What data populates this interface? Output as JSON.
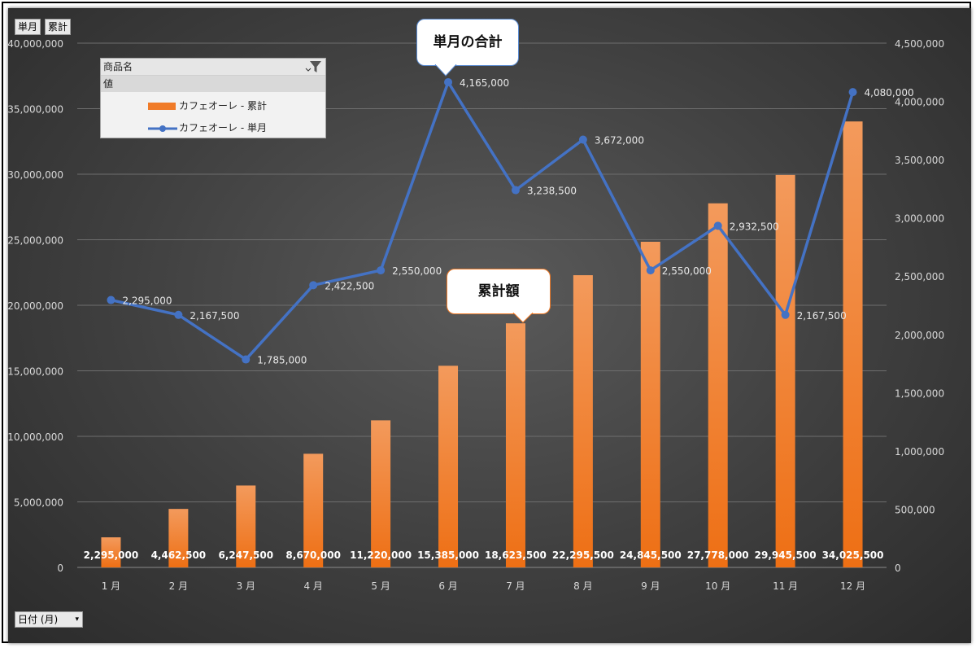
{
  "field_buttons": {
    "single": "単月",
    "cumulative": "累計",
    "date": "日付 (月)"
  },
  "legend": {
    "header": "商品名",
    "subheader": "値",
    "items": [
      {
        "label": "カフェオーレ - 累計",
        "color": "#f07b28"
      },
      {
        "label": "カフェオーレ - 単月",
        "color": "#4472c4"
      }
    ]
  },
  "callouts": {
    "single_total": "単月の合計",
    "cumulative_total": "累計額"
  },
  "chart_data": {
    "type": "bar",
    "categories": [
      "1 月",
      "2 月",
      "3 月",
      "4 月",
      "5 月",
      "6 月",
      "7 月",
      "8 月",
      "9 月",
      "10 月",
      "11 月",
      "12 月"
    ],
    "series": [
      {
        "name": "カフェオーレ - 累計",
        "type": "bar",
        "axis": "left",
        "color": "#f07b28",
        "values": [
          2295000,
          4462500,
          6247500,
          8670000,
          11220000,
          15385000,
          18623500,
          22295500,
          24845500,
          27778000,
          29945500,
          34025500
        ],
        "labels": [
          "2,295,000",
          "4,462,500",
          "6,247,500",
          "8,670,000",
          "11,220,000",
          "15,385,000",
          "18,623,500",
          "22,295,500",
          "24,845,500",
          "27,778,000",
          "29,945,500",
          "34,025,500"
        ]
      },
      {
        "name": "カフェオーレ - 単月",
        "type": "line",
        "axis": "right",
        "color": "#4472c4",
        "values": [
          2295000,
          2167500,
          1785000,
          2422500,
          2550000,
          4165000,
          3238500,
          3672000,
          2550000,
          2932500,
          2167500,
          4080000
        ],
        "labels": [
          "2,295,000",
          "2,167,500",
          "1,785,000",
          "2,422,500",
          "2,550,000",
          "4,165,000",
          "3,238,500",
          "3,672,000",
          "2,550,000",
          "2,932,500",
          "2,167,500",
          "4,080,000"
        ]
      }
    ],
    "ylim": [
      0,
      40000000
    ],
    "yticks": [
      "0",
      "5,000,000",
      "10,000,000",
      "15,000,000",
      "20,000,000",
      "25,000,000",
      "30,000,000",
      "35,000,000",
      "40,000,000"
    ],
    "y2lim": [
      0,
      4500000
    ],
    "y2ticks": [
      "0",
      "500,000",
      "1,000,000",
      "1,500,000",
      "2,000,000",
      "2,500,000",
      "3,000,000",
      "3,500,000",
      "4,000,000",
      "4,500,000"
    ],
    "grid": true
  }
}
